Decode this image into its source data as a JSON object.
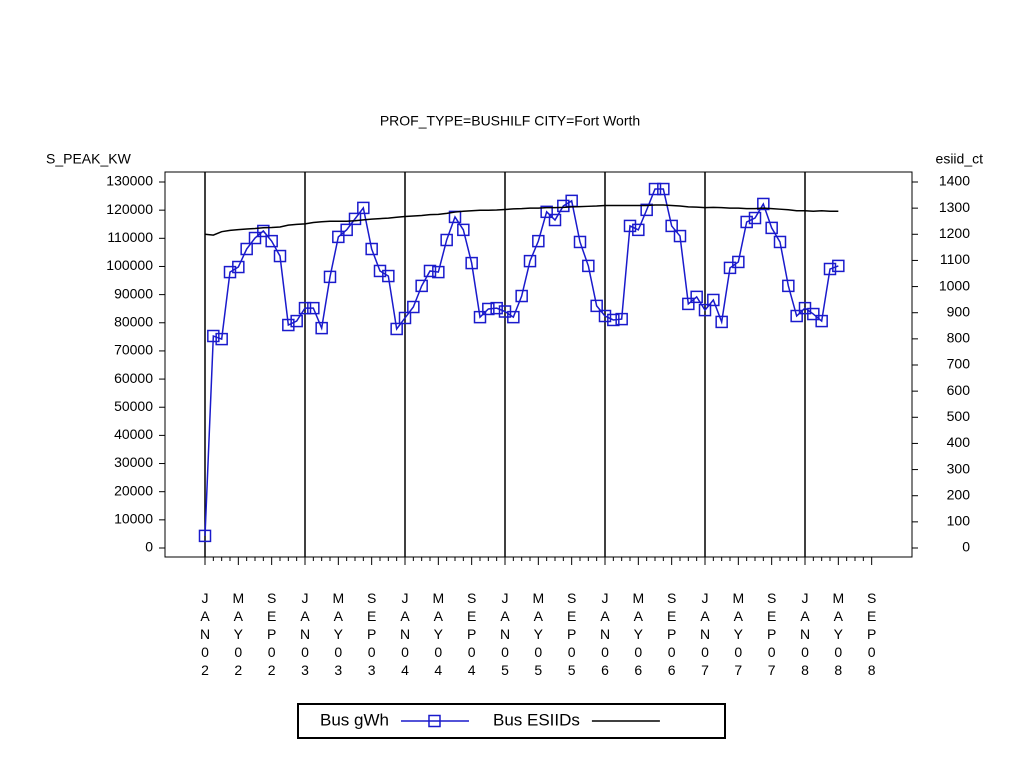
{
  "chart_data": {
    "type": "line",
    "title": "PROF_TYPE=BUSHILF CITY=Fort Worth",
    "y_label": "S_PEAK_KW",
    "y2_label": "esiid_ct",
    "categories": [
      "JAN02",
      null,
      null,
      null,
      "MAY02",
      null,
      null,
      null,
      "SEP02",
      null,
      null,
      null,
      "JAN03",
      null,
      null,
      null,
      "MAY03",
      null,
      null,
      null,
      "SEP03",
      null,
      null,
      null,
      "JAN04",
      null,
      null,
      null,
      "MAY04",
      null,
      null,
      null,
      "SEP04",
      null,
      null,
      null,
      "JAN05",
      null,
      null,
      null,
      "MAY05",
      null,
      null,
      null,
      "SEP05",
      null,
      null,
      null,
      "JAN06",
      null,
      null,
      null,
      "MAY06",
      null,
      null,
      null,
      "SEP06",
      null,
      null,
      null,
      "JAN07",
      null,
      null,
      null,
      "MAY07",
      null,
      null,
      null,
      "SEP07",
      null,
      null,
      null,
      "JAN08",
      null,
      null,
      null,
      "MAY08",
      null,
      null,
      null,
      "SEP08"
    ],
    "series": [
      {
        "name": "Bus gWh",
        "color": "#1a1acc",
        "marker": "square",
        "values": [
          4300,
          75300,
          74200,
          98000,
          99800,
          106200,
          110100,
          112600,
          109000,
          103700,
          79200,
          80600,
          85200,
          85200,
          78100,
          96300,
          110500,
          113000,
          116900,
          120800,
          106200,
          98400,
          96600,
          77800,
          81700,
          85600,
          93100,
          98400,
          98000,
          109400,
          117600,
          113000,
          101200,
          82000,
          84900,
          85200,
          84000,
          82000,
          89500,
          101900,
          109000,
          119400,
          116500,
          121500,
          123300,
          108700,
          100200,
          86000,
          82400,
          81000,
          81300,
          114400,
          113000,
          120100,
          127500,
          127500,
          114400,
          110800,
          86700,
          89200,
          84500,
          88100,
          80300,
          99500,
          101600,
          115800,
          117200,
          122200,
          113700,
          108700,
          93100,
          82400,
          85200,
          83100,
          80600,
          99100,
          100200,
          null,
          null,
          null,
          null
        ]
      },
      {
        "name": "Bus ESIIDs",
        "color": "#000000",
        "axis": "y2",
        "values": [
          1200,
          1197,
          1210,
          1215,
          1218,
          1220,
          1222,
          1225,
          1226,
          1228,
          1235,
          1238,
          1240,
          1245,
          1248,
          1250,
          1250,
          1250,
          1252,
          1255,
          1258,
          1260,
          1262,
          1265,
          1268,
          1270,
          1272,
          1275,
          1276,
          1280,
          1285,
          1288,
          1290,
          1292,
          1292,
          1293,
          1295,
          1297,
          1298,
          1300,
          1300,
          1302,
          1302,
          1303,
          1305,
          1306,
          1307,
          1308,
          1310,
          1310,
          1310,
          1310,
          1310,
          1310,
          1312,
          1312,
          1310,
          1308,
          1305,
          1304,
          1302,
          1303,
          1302,
          1300,
          1300,
          1298,
          1298,
          1300,
          1298,
          1296,
          1294,
          1290,
          1290,
          1288,
          1290,
          1288,
          1288,
          null,
          null,
          null,
          null
        ]
      }
    ],
    "ylim": [
      0,
      130000
    ],
    "yticks": [
      0,
      10000,
      20000,
      30000,
      40000,
      50000,
      60000,
      70000,
      80000,
      90000,
      100000,
      110000,
      120000,
      130000
    ],
    "y2lim": [
      0,
      1400
    ],
    "y2ticks": [
      0,
      100,
      200,
      300,
      400,
      500,
      600,
      700,
      800,
      900,
      1000,
      1100,
      1200,
      1300,
      1400
    ],
    "legend": "bottom"
  }
}
